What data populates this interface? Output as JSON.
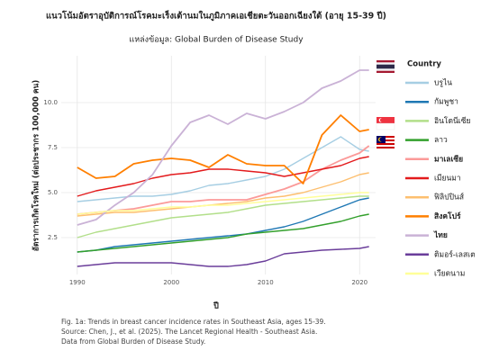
{
  "chart_data": {
    "type": "line",
    "title": "แนวโน้มอัตราอุบัติการณ์โรคมะเร็งเต้านมในภูมิภาคเอเชียตะวันออกเฉียงใต้ (อายุ 15-39 ปี)",
    "subtitle": "แหล่งข้อมูล: Global Burden of Disease Study",
    "x_label": "ปี",
    "y_label": "อัตราการเกิดโรคใหม่ (ต่อประชากร 100,000 คน)",
    "legend_title": "Country",
    "caption": [
      "Fig. 1a: Trends in breast cancer incidence rates in Southeast Asia, ages 15-39.",
      "Source: Chen, J., et al. (2025). The Lancet Regional Health - Southeast Asia.",
      "Data from Global Burden of Disease Study."
    ],
    "x": [
      1990,
      1992,
      1994,
      1996,
      1998,
      2000,
      2002,
      2004,
      2006,
      2008,
      2010,
      2012,
      2014,
      2016,
      2018,
      2020,
      2021
    ],
    "xlim": [
      1988.3,
      2021.7
    ],
    "xticks": [
      1990,
      2000,
      2010,
      2020
    ],
    "ylim": [
      0.45,
      12.6
    ],
    "yticks": [
      {
        "value": 2.5,
        "label": "2.5"
      },
      {
        "value": 5,
        "label": "5.0"
      },
      {
        "value": 7.5,
        "label": "7.5"
      },
      {
        "value": 10,
        "label": "10.0"
      }
    ],
    "grid": true,
    "legend": "right",
    "series": [
      {
        "name": "บรูไน",
        "color": "#a6cee3",
        "values": [
          4.5,
          4.6,
          4.7,
          4.8,
          4.8,
          4.9,
          5.1,
          5.4,
          5.5,
          5.7,
          5.9,
          6.3,
          6.9,
          7.5,
          8.1,
          7.4,
          7.3
        ]
      },
      {
        "name": "กัมพูชา",
        "color": "#1f78b4",
        "values": [
          1.7,
          1.8,
          2.0,
          2.1,
          2.2,
          2.3,
          2.4,
          2.5,
          2.6,
          2.7,
          2.9,
          3.1,
          3.4,
          3.8,
          4.2,
          4.6,
          4.7
        ]
      },
      {
        "name": "อินโดนีเซีย",
        "color": "#b2df8a",
        "values": [
          2.5,
          2.8,
          3.0,
          3.2,
          3.4,
          3.6,
          3.7,
          3.8,
          3.9,
          4.1,
          4.3,
          4.4,
          4.5,
          4.6,
          4.7,
          4.8,
          4.8
        ]
      },
      {
        "name": "ลาว",
        "color": "#33a02c",
        "values": [
          1.7,
          1.8,
          1.9,
          2.0,
          2.1,
          2.2,
          2.3,
          2.4,
          2.5,
          2.7,
          2.8,
          2.9,
          3.0,
          3.2,
          3.4,
          3.7,
          3.8
        ]
      },
      {
        "name": "มาเลเซีย",
        "color": "#fb9a99",
        "highlight": true,
        "values": [
          3.8,
          3.9,
          4.0,
          4.1,
          4.3,
          4.5,
          4.5,
          4.6,
          4.6,
          4.6,
          4.9,
          5.2,
          5.6,
          6.3,
          6.8,
          7.2,
          7.6
        ]
      },
      {
        "name": "เมียนมา",
        "color": "#e31a1c",
        "values": [
          4.8,
          5.1,
          5.3,
          5.5,
          5.8,
          6.0,
          6.1,
          6.3,
          6.3,
          6.2,
          6.1,
          5.9,
          6.1,
          6.3,
          6.5,
          6.9,
          7.0
        ]
      },
      {
        "name": "ฟิลิปปินส์",
        "color": "#fdbf6f",
        "values": [
          3.7,
          3.8,
          3.9,
          3.9,
          4.0,
          4.1,
          4.2,
          4.3,
          4.4,
          4.5,
          4.7,
          4.8,
          5.0,
          5.3,
          5.6,
          6.0,
          6.1
        ]
      },
      {
        "name": "สิงคโปร์",
        "color": "#ff7f00",
        "highlight": true,
        "values": [
          6.4,
          5.8,
          5.9,
          6.6,
          6.8,
          6.9,
          6.8,
          6.4,
          7.1,
          6.6,
          6.5,
          6.5,
          5.5,
          8.2,
          9.3,
          8.4,
          8.5
        ]
      },
      {
        "name": "ไทย",
        "color": "#cab2d6",
        "highlight": true,
        "values": [
          3.2,
          3.5,
          4.3,
          5.0,
          6.0,
          7.6,
          8.9,
          9.3,
          8.8,
          9.4,
          9.1,
          9.5,
          10.0,
          10.8,
          11.2,
          11.8,
          11.8
        ]
      },
      {
        "name": "ติมอร์-เลสเต",
        "color": "#6a3d9a",
        "values": [
          0.9,
          1.0,
          1.1,
          1.1,
          1.1,
          1.1,
          1.0,
          0.9,
          0.9,
          1.0,
          1.2,
          1.6,
          1.7,
          1.8,
          1.85,
          1.9,
          2.0
        ]
      },
      {
        "name": "เวียดนาม",
        "color": "#ffff99",
        "values": [
          3.8,
          3.9,
          4.0,
          4.0,
          4.1,
          4.2,
          4.2,
          4.3,
          4.3,
          4.4,
          4.5,
          4.6,
          4.7,
          4.8,
          4.9,
          5.0,
          5.0
        ]
      }
    ]
  }
}
